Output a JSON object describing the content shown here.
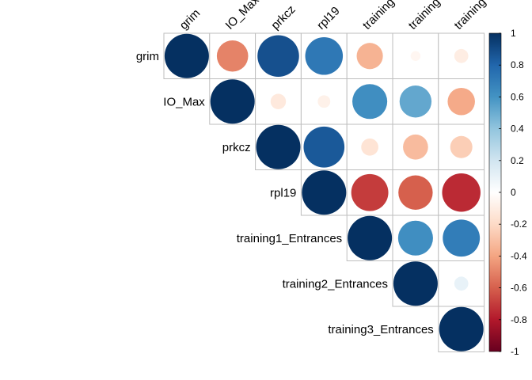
{
  "chart_data": {
    "type": "heatmap",
    "style": "correlation-circles-upper-triangle",
    "variables": [
      "grim",
      "IO_Max",
      "prkcz",
      "rpl19",
      "training1_Entrances",
      "training2_Entrances",
      "training3_Entrances"
    ],
    "column_labels_visible": [
      "grim",
      "IO_Max",
      "prkcz",
      "rpl19",
      "training",
      "training",
      "training"
    ],
    "matrix": [
      [
        1.0,
        -0.5,
        0.88,
        0.72,
        -0.35,
        -0.05,
        -0.1
      ],
      [
        null,
        1.0,
        -0.12,
        -0.08,
        0.62,
        0.52,
        -0.38
      ],
      [
        null,
        null,
        1.0,
        0.85,
        -0.15,
        -0.32,
        -0.25
      ],
      [
        null,
        null,
        null,
        1.0,
        -0.7,
        -0.6,
        -0.75
      ],
      [
        null,
        null,
        null,
        null,
        1.0,
        0.62,
        0.7
      ],
      [
        null,
        null,
        null,
        null,
        null,
        1.0,
        0.1
      ],
      [
        null,
        null,
        null,
        null,
        null,
        null,
        1.0
      ]
    ],
    "colorbar": {
      "range": [
        -1,
        1
      ],
      "ticks": [
        "1",
        "0.8",
        "0.6",
        "0.4",
        "0.2",
        "0",
        "-0.2",
        "-0.4",
        "-0.6",
        "-0.8",
        "-1"
      ],
      "colors": [
        "#67001F",
        "#B2182B",
        "#D6604D",
        "#F4A582",
        "#FDDBC7",
        "#FFFFFF",
        "#D1E5F0",
        "#92C5DE",
        "#4393C3",
        "#2166AC",
        "#053061"
      ]
    },
    "legend": "right",
    "grid": true
  }
}
